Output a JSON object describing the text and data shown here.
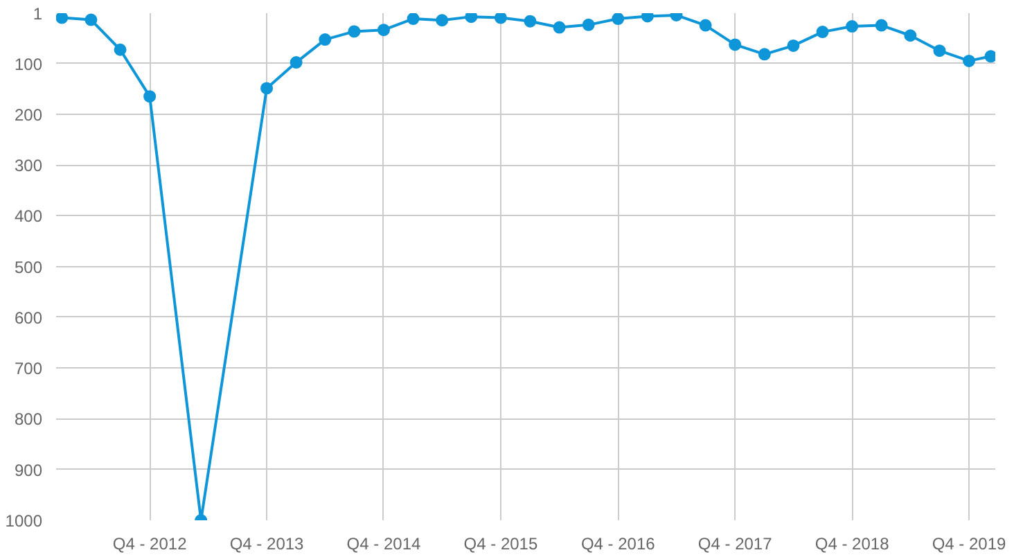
{
  "chart_data": {
    "type": "line",
    "x": [
      "2012-01-01",
      "2012-04-01",
      "2012-07-01",
      "2012-10-01",
      "2013-03-10",
      "2013-10-01",
      "2014-01-01",
      "2014-04-01",
      "2014-07-01",
      "2014-10-01",
      "2015-01-01",
      "2015-04-01",
      "2015-07-01",
      "2015-10-01",
      "2016-01-01",
      "2016-04-01",
      "2016-07-01",
      "2016-10-01",
      "2017-01-01",
      "2017-04-01",
      "2017-07-01",
      "2017-10-01",
      "2018-01-01",
      "2018-04-01",
      "2018-07-01",
      "2018-10-01",
      "2019-01-01",
      "2019-04-01",
      "2019-07-01",
      "2019-10-01",
      "2019-12-08"
    ],
    "series": [
      {
        "color": "#0f96d9",
        "values": [
          10,
          14,
          73,
          165,
          1000,
          149,
          98,
          53,
          37,
          34,
          12,
          15,
          8,
          10,
          17,
          29,
          24,
          12,
          7,
          5,
          25,
          63,
          82,
          65,
          38,
          27,
          25,
          45,
          75,
          95,
          86
        ]
      }
    ],
    "xlim": [
      "2011-12-14",
      "2019-12-22"
    ],
    "xticks": [
      {
        "value": "2012-10-01",
        "label": "Q4 - 2012"
      },
      {
        "value": "2013-10-01",
        "label": "Q4 - 2013"
      },
      {
        "value": "2014-10-01",
        "label": "Q4 - 2014"
      },
      {
        "value": "2015-10-01",
        "label": "Q4 - 2015"
      },
      {
        "value": "2016-10-01",
        "label": "Q4 - 2016"
      },
      {
        "value": "2017-10-01",
        "label": "Q4 - 2017"
      },
      {
        "value": "2018-10-01",
        "label": "Q4 - 2018"
      },
      {
        "value": "2019-10-01",
        "label": "Q4 - 2019"
      }
    ],
    "ylim": [
      1000,
      1
    ],
    "yticks": [
      1,
      100,
      200,
      300,
      400,
      500,
      600,
      700,
      800,
      900,
      1000
    ],
    "grid": true,
    "marker": "circle",
    "line_style": "solid"
  }
}
